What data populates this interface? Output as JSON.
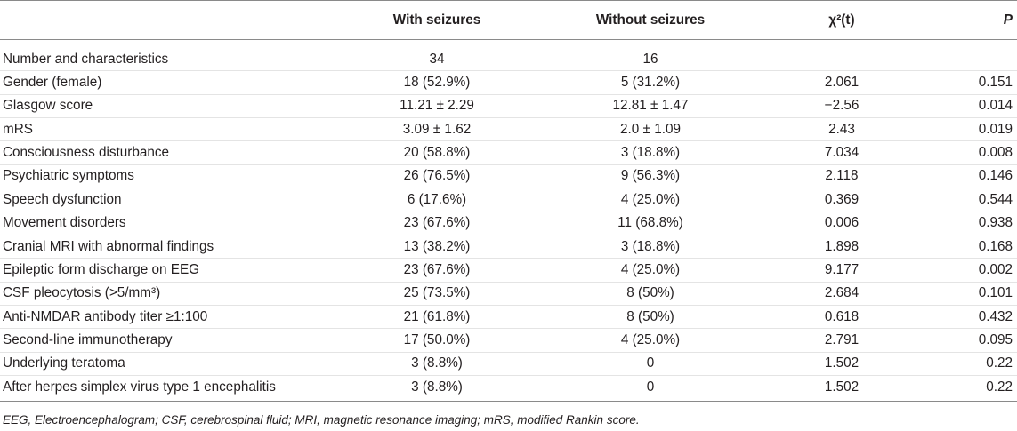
{
  "table": {
    "header": {
      "with_seizures": "With seizures",
      "without_seizures": "Without seizures",
      "statistic": "χ²(t)",
      "p": "P"
    },
    "rows": [
      {
        "characteristic": "Number and characteristics",
        "with_seizures": "34",
        "without_seizures": "16"
      },
      {
        "characteristic": "Gender (female)",
        "with_seizures": "18 (52.9%)",
        "without_seizures": "5 (31.2%)",
        "statistic": "2.061",
        "p": "0.151"
      },
      {
        "characteristic": "Glasgow score",
        "with_seizures": "11.21 ± 2.29",
        "without_seizures": "12.81 ± 1.47",
        "statistic": "−2.56",
        "p": "0.014"
      },
      {
        "characteristic": "mRS",
        "with_seizures": "3.09 ± 1.62",
        "without_seizures": "2.0 ± 1.09",
        "statistic": "2.43",
        "p": "0.019"
      },
      {
        "characteristic": "Consciousness disturbance",
        "with_seizures": "20 (58.8%)",
        "without_seizures": "3 (18.8%)",
        "statistic": "7.034",
        "p": "0.008"
      },
      {
        "characteristic": "Psychiatric symptoms",
        "with_seizures": "26 (76.5%)",
        "without_seizures": "9 (56.3%)",
        "statistic": "2.118",
        "p": "0.146"
      },
      {
        "characteristic": "Speech dysfunction",
        "with_seizures": "6 (17.6%)",
        "without_seizures": "4 (25.0%)",
        "statistic": "0.369",
        "p": "0.544"
      },
      {
        "characteristic": "Movement disorders",
        "with_seizures": "23 (67.6%)",
        "without_seizures": "11 (68.8%)",
        "statistic": "0.006",
        "p": "0.938"
      },
      {
        "characteristic": "Cranial MRI with abnormal findings",
        "with_seizures": "13 (38.2%)",
        "without_seizures": "3 (18.8%)",
        "statistic": "1.898",
        "p": "0.168"
      },
      {
        "characteristic": "Epileptic form discharge on EEG",
        "with_seizures": "23 (67.6%)",
        "without_seizures": "4 (25.0%)",
        "statistic": "9.177",
        "p": "0.002"
      },
      {
        "characteristic": "CSF pleocytosis (>5/mm³)",
        "with_seizures": "25 (73.5%)",
        "without_seizures": "8 (50%)",
        "statistic": "2.684",
        "p": "0.101"
      },
      {
        "characteristic": "Anti-NMDAR antibody titer ≥1:100",
        "with_seizures": "21 (61.8%)",
        "without_seizures": "8 (50%)",
        "statistic": "0.618",
        "p": "0.432"
      },
      {
        "characteristic": "Second-line immunotherapy",
        "with_seizures": "17 (50.0%)",
        "without_seizures": "4 (25.0%)",
        "statistic": "2.791",
        "p": "0.095"
      },
      {
        "characteristic": "Underlying teratoma",
        "with_seizures": "3 (8.8%)",
        "without_seizures": "0",
        "statistic": "1.502",
        "p": "0.22"
      },
      {
        "characteristic": "After herpes simplex virus type 1 encephalitis",
        "with_seizures": "3 (8.8%)",
        "without_seizures": "0",
        "statistic": "1.502",
        "p": "0.22"
      }
    ]
  },
  "footnote": "EEG, Electroencephalogram; CSF, cerebrospinal fluid; MRI, magnetic resonance imaging; mRS, modified Rankin score."
}
